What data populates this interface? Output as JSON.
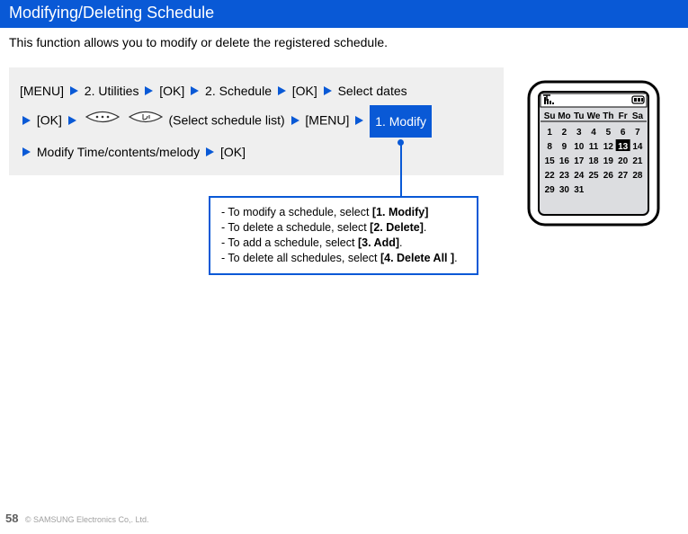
{
  "header": {
    "title": "Modifying/Deleting Schedule"
  },
  "intro": "This function allows you to modify or delete the registered schedule.",
  "steps": {
    "s1": "[MENU]",
    "s2": "2. Utilities",
    "s3": "[OK]",
    "s4": "2. Schedule",
    "s5": "[OK]",
    "s6": "Select dates",
    "s7": "[OK]",
    "s8_paren": "(Select schedule list)",
    "s9": "[MENU]",
    "highlight": "1. Modify",
    "s10": "Modify Time/contents/melody",
    "s11": "[OK]"
  },
  "tip": {
    "line1_prefix": "- To modify a schedule, select ",
    "line1_bold": "[1. Modify]",
    "line2_prefix": "- To delete a schedule, select ",
    "line2_bold": "[2. Delete]",
    "line3_prefix": "- To add a schedule, select ",
    "line3_bold": "[3. Add]",
    "line4_prefix": "- To delete all schedules, select ",
    "line4_bold": "[4. Delete All ]"
  },
  "calendar": {
    "days": [
      "Su",
      "Mo",
      "Tu",
      "We",
      "Th",
      "Fr",
      "Sa"
    ],
    "rows": [
      [
        "1",
        "2",
        "3",
        "4",
        "5",
        "6",
        "7"
      ],
      [
        "8",
        "9",
        "10",
        "11",
        "12",
        "13",
        "14"
      ],
      [
        "15",
        "16",
        "17",
        "18",
        "19",
        "20",
        "21"
      ],
      [
        "22",
        "23",
        "24",
        "25",
        "26",
        "27",
        "28"
      ],
      [
        "29",
        "30",
        "31",
        "",
        "",
        "",
        ""
      ]
    ],
    "highlighted_row": 1,
    "highlighted_col": 5
  },
  "footer": {
    "page": "58",
    "copyright": "© SAMSUNG Electronics Co,. Ltd."
  },
  "colors": {
    "primary": "#0959d6",
    "steps_bg": "#efefef",
    "screen_fill": "#dcdde0"
  }
}
